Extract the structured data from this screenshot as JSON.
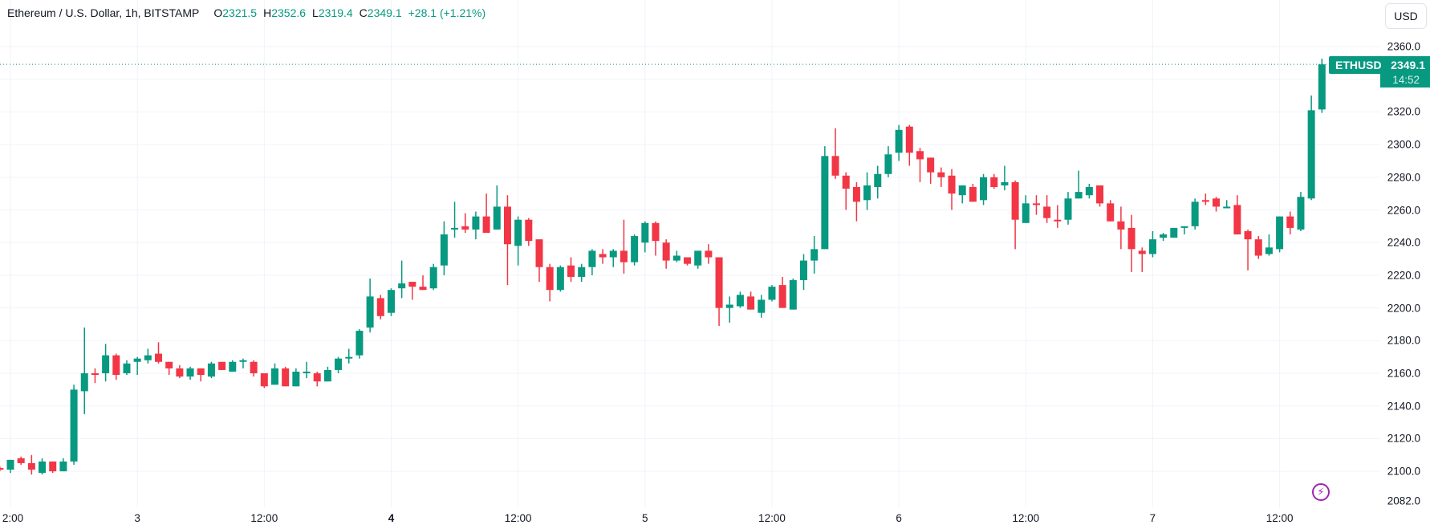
{
  "legend": {
    "title": "Ethereum / U.S. Dollar, 1h, BITSTAMP",
    "o_label": "O",
    "o_value": "2321.5",
    "h_label": "H",
    "h_value": "2352.6",
    "l_label": "L",
    "l_value": "2319.4",
    "c_label": "C",
    "c_value": "2349.1",
    "change": "+28.1 (+1.21%)"
  },
  "currency_button": "USD",
  "last_price": {
    "symbol": "ETHUSD",
    "price": "2349.1",
    "countdown": "14:52"
  },
  "icons": {
    "alert": "lightning-icon"
  },
  "colors": {
    "up": "#089981",
    "down": "#f23645",
    "grid": "#f0f3fa",
    "alert": "#9c27b0"
  },
  "chart_data": {
    "type": "candlestick",
    "title": "Ethereum / U.S. Dollar, 1h, BITSTAMP",
    "interval": "1h",
    "ylim": [
      2082,
      2368
    ],
    "grid": true,
    "y_ticks": [
      "2360.0",
      "2320.0",
      "2300.0",
      "2280.0",
      "2260.0",
      "2240.0",
      "2220.0",
      "2200.0",
      "2180.0",
      "2160.0",
      "2140.0",
      "2120.0",
      "2100.0",
      "2082.0"
    ],
    "x_ticks": [
      {
        "label": "2:00",
        "hour": 0
      },
      {
        "label": "3",
        "hour": 12,
        "day": true
      },
      {
        "label": "12:00",
        "hour": 24
      },
      {
        "label": "4",
        "hour": 36,
        "day": true,
        "bold": true
      },
      {
        "label": "12:00",
        "hour": 48
      },
      {
        "label": "5",
        "hour": 60,
        "day": true
      },
      {
        "label": "12:00",
        "hour": 72
      },
      {
        "label": "6",
        "hour": 84,
        "day": true
      },
      {
        "label": "12:00",
        "hour": 96
      },
      {
        "label": "7",
        "hour": 108,
        "day": true
      },
      {
        "label": "12:00",
        "hour": 120
      }
    ],
    "first_candle_hour": -1,
    "ohlc_fields": [
      "open",
      "high",
      "low",
      "close"
    ],
    "candles": [
      [
        2102,
        2103,
        2100,
        2101
      ],
      [
        2101,
        2107,
        2099,
        2107
      ],
      [
        2108,
        2109,
        2104,
        2105
      ],
      [
        2105,
        2110,
        2098,
        2101
      ],
      [
        2099,
        2108,
        2098,
        2106
      ],
      [
        2106,
        2106,
        2099,
        2100
      ],
      [
        2100,
        2108,
        2100,
        2106
      ],
      [
        2106,
        2153,
        2104,
        2150
      ],
      [
        2149,
        2188,
        2135,
        2160
      ],
      [
        2160,
        2163,
        2154,
        2159
      ],
      [
        2160,
        2178,
        2155,
        2171
      ],
      [
        2171,
        2172,
        2156,
        2159
      ],
      [
        2160,
        2168,
        2159,
        2166
      ],
      [
        2167,
        2170,
        2159,
        2169
      ],
      [
        2168,
        2175,
        2166,
        2171
      ],
      [
        2172,
        2179,
        2166,
        2167
      ],
      [
        2167,
        2167,
        2159,
        2163
      ],
      [
        2163,
        2165,
        2157,
        2158
      ],
      [
        2158,
        2164,
        2156,
        2163
      ],
      [
        2163,
        2163,
        2155,
        2159
      ],
      [
        2158,
        2167,
        2157,
        2166
      ],
      [
        2167,
        2167,
        2162,
        2162
      ],
      [
        2161,
        2168,
        2161,
        2167
      ],
      [
        2167,
        2169,
        2163,
        2168
      ],
      [
        2167,
        2168,
        2158,
        2160
      ],
      [
        2160,
        2160,
        2151,
        2152
      ],
      [
        2153,
        2166,
        2153,
        2163
      ],
      [
        2163,
        2164,
        2152,
        2152
      ],
      [
        2152,
        2163,
        2152,
        2161
      ],
      [
        2160,
        2167,
        2157,
        2161
      ],
      [
        2160,
        2161,
        2152,
        2155
      ],
      [
        2155,
        2164,
        2155,
        2162
      ],
      [
        2162,
        2170,
        2160,
        2169
      ],
      [
        2169,
        2175,
        2166,
        2170
      ],
      [
        2171,
        2187,
        2169,
        2186
      ],
      [
        2188,
        2218,
        2185,
        2207
      ],
      [
        2206,
        2208,
        2193,
        2195
      ],
      [
        2197,
        2212,
        2195,
        2211
      ],
      [
        2212,
        2229,
        2206,
        2215
      ],
      [
        2216,
        2216,
        2205,
        2213
      ],
      [
        2213,
        2220,
        2211,
        2211
      ],
      [
        2212,
        2227,
        2211,
        2225
      ],
      [
        2226,
        2253,
        2220,
        2245
      ],
      [
        2248,
        2265,
        2243,
        2249
      ],
      [
        2250,
        2258,
        2246,
        2248
      ],
      [
        2248,
        2259,
        2242,
        2256
      ],
      [
        2256,
        2270,
        2246,
        2246
      ],
      [
        2248,
        2275,
        2248,
        2262
      ],
      [
        2262,
        2269,
        2214,
        2239
      ],
      [
        2238,
        2256,
        2226,
        2254
      ],
      [
        2254,
        2255,
        2238,
        2241
      ],
      [
        2242,
        2242,
        2216,
        2225
      ],
      [
        2225,
        2227,
        2204,
        2211
      ],
      [
        2211,
        2226,
        2210,
        2225
      ],
      [
        2226,
        2231,
        2216,
        2219
      ],
      [
        2219,
        2227,
        2216,
        2225
      ],
      [
        2225,
        2236,
        2220,
        2235
      ],
      [
        2233,
        2236,
        2227,
        2231
      ],
      [
        2231,
        2236,
        2225,
        2235
      ],
      [
        2235,
        2254,
        2221,
        2228
      ],
      [
        2228,
        2245,
        2226,
        2244
      ],
      [
        2240,
        2253,
        2234,
        2252
      ],
      [
        2252,
        2253,
        2232,
        2241
      ],
      [
        2240,
        2242,
        2224,
        2229
      ],
      [
        2229,
        2235,
        2228,
        2232
      ],
      [
        2231,
        2231,
        2226,
        2227
      ],
      [
        2226,
        2235,
        2224,
        2235
      ],
      [
        2235,
        2239,
        2227,
        2231
      ],
      [
        2231,
        2231,
        2189,
        2200
      ],
      [
        2200,
        2207,
        2191,
        2202
      ],
      [
        2201,
        2210,
        2200,
        2208
      ],
      [
        2207,
        2210,
        2199,
        2199
      ],
      [
        2197,
        2208,
        2194,
        2205
      ],
      [
        2205,
        2214,
        2204,
        2213
      ],
      [
        2214,
        2219,
        2200,
        2200
      ],
      [
        2199,
        2218,
        2199,
        2217
      ],
      [
        2217,
        2233,
        2211,
        2229
      ],
      [
        2229,
        2244,
        2221,
        2236
      ],
      [
        2236,
        2299,
        2236,
        2293
      ],
      [
        2293,
        2310,
        2279,
        2281
      ],
      [
        2281,
        2283,
        2260,
        2273
      ],
      [
        2274,
        2277,
        2253,
        2265
      ],
      [
        2266,
        2283,
        2260,
        2275
      ],
      [
        2274,
        2287,
        2267,
        2282
      ],
      [
        2282,
        2299,
        2280,
        2294
      ],
      [
        2295,
        2312,
        2290,
        2309
      ],
      [
        2311,
        2312,
        2287,
        2295
      ],
      [
        2296,
        2298,
        2277,
        2291
      ],
      [
        2292,
        2292,
        2276,
        2283
      ],
      [
        2283,
        2286,
        2274,
        2280
      ],
      [
        2281,
        2285,
        2260,
        2270
      ],
      [
        2269,
        2275,
        2264,
        2275
      ],
      [
        2274,
        2276,
        2265,
        2265
      ],
      [
        2266,
        2282,
        2263,
        2280
      ],
      [
        2280,
        2282,
        2273,
        2274
      ],
      [
        2275,
        2287,
        2272,
        2277
      ],
      [
        2277,
        2278,
        2236,
        2254
      ],
      [
        2252,
        2269,
        2252,
        2264
      ],
      [
        2264,
        2269,
        2257,
        2263
      ],
      [
        2262,
        2269,
        2252,
        2255
      ],
      [
        2254,
        2263,
        2249,
        2253
      ],
      [
        2254,
        2271,
        2251,
        2267
      ],
      [
        2267,
        2284,
        2267,
        2271
      ],
      [
        2269,
        2276,
        2267,
        2274
      ],
      [
        2275,
        2275,
        2262,
        2264
      ],
      [
        2264,
        2266,
        2253,
        2253
      ],
      [
        2253,
        2262,
        2236,
        2248
      ],
      [
        2249,
        2257,
        2222,
        2236
      ],
      [
        2235,
        2237,
        2222,
        2233
      ],
      [
        2233,
        2247,
        2231,
        2242
      ],
      [
        2243,
        2246,
        2241,
        2245
      ],
      [
        2243,
        2249,
        2243,
        2249
      ],
      [
        2249,
        2250,
        2245,
        2250
      ],
      [
        2250,
        2267,
        2248,
        2265
      ],
      [
        2266,
        2270,
        2263,
        2265
      ],
      [
        2267,
        2268,
        2259,
        2262
      ],
      [
        2261,
        2266,
        2261,
        2262
      ],
      [
        2263,
        2269,
        2245,
        2245
      ],
      [
        2247,
        2248,
        2223,
        2242
      ],
      [
        2242,
        2244,
        2230,
        2232
      ],
      [
        2233,
        2245,
        2232,
        2237
      ],
      [
        2236,
        2256,
        2234,
        2256
      ],
      [
        2256,
        2259,
        2245,
        2249
      ],
      [
        2248,
        2271,
        2247,
        2268
      ],
      [
        2267,
        2330,
        2266,
        2321
      ],
      [
        2321.5,
        2352.6,
        2319.4,
        2349.1
      ]
    ],
    "last_price_line": 2349.1
  }
}
